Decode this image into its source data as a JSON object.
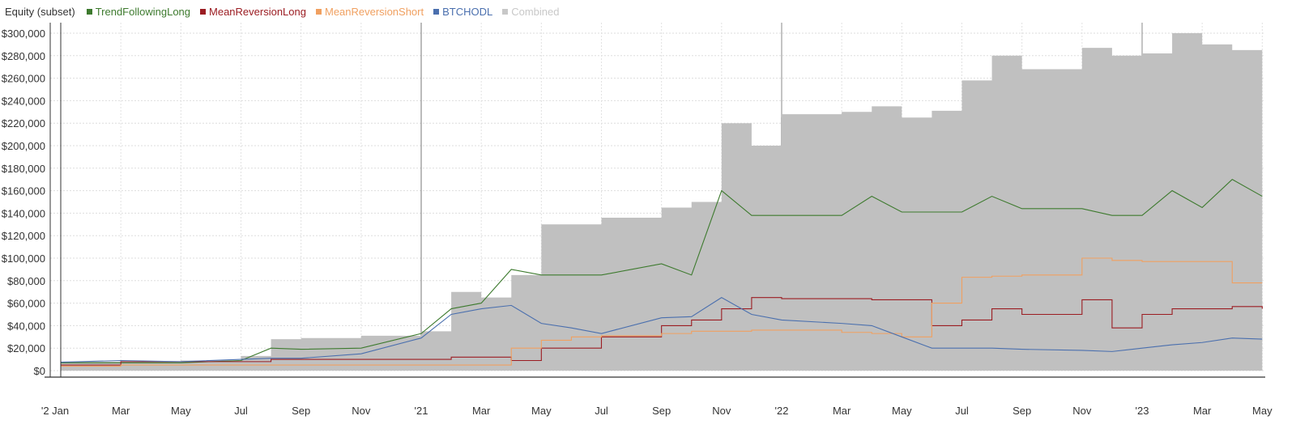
{
  "header": {
    "title": "Equity (subset)"
  },
  "legend": [
    {
      "label": "TrendFollowingLong",
      "color": "#3d7a2e"
    },
    {
      "label": "MeanReversionLong",
      "color": "#9b1c22"
    },
    {
      "label": "MeanReversionShort",
      "color": "#f0a060"
    },
    {
      "label": "BTCHODL",
      "color": "#4a6fae"
    },
    {
      "label": "Combined",
      "color": "#c0c0c0"
    }
  ],
  "chart_data": {
    "type": "line",
    "title": "Equity (subset)",
    "xlabel": "",
    "ylabel": "",
    "ylim": [
      0,
      300000
    ],
    "grid": true,
    "legend_position": "top-left",
    "y_ticks": [
      "$0",
      "$20,000",
      "$40,000",
      "$60,000",
      "$80,000",
      "$100,000",
      "$120,000",
      "$140,000",
      "$160,000",
      "$180,000",
      "$200,000",
      "$220,000",
      "$240,000",
      "$260,000",
      "$280,000",
      "$300,000"
    ],
    "x_ticks": [
      "'2 Jan",
      "Mar",
      "May",
      "Jul",
      "Sep",
      "Nov",
      "'21",
      "Mar",
      "May",
      "Jul",
      "Sep",
      "Nov",
      "'22",
      "Mar",
      "May",
      "Jul",
      "Sep",
      "Nov",
      "'23",
      "Mar",
      "May"
    ],
    "x": [
      "2020-01",
      "2020-03",
      "2020-05",
      "2020-07",
      "2020-08",
      "2020-09",
      "2020-11",
      "2021-01",
      "2021-02",
      "2021-03",
      "2021-04",
      "2021-05",
      "2021-06",
      "2021-07",
      "2021-09",
      "2021-10",
      "2021-11",
      "2021-12",
      "2022-01",
      "2022-03",
      "2022-04",
      "2022-05",
      "2022-06",
      "2022-07",
      "2022-08",
      "2022-09",
      "2022-11",
      "2022-12",
      "2023-01",
      "2023-02",
      "2023-03",
      "2023-04",
      "2023-05"
    ],
    "series": [
      {
        "name": "Combined",
        "type": "area",
        "color": "#c0c0c0",
        "values": [
          8000,
          8000,
          9000,
          13000,
          28000,
          29000,
          31000,
          35000,
          70000,
          65000,
          85000,
          130000,
          130000,
          136000,
          145000,
          150000,
          220000,
          200000,
          228000,
          230000,
          235000,
          225000,
          231000,
          258000,
          280000,
          268000,
          287000,
          280000,
          282000,
          300000,
          290000,
          285000,
          280000
        ]
      },
      {
        "name": "TrendFollowingLong",
        "color": "#3d7a2e",
        "values": [
          7000,
          7000,
          7000,
          9000,
          20000,
          19000,
          20000,
          33000,
          55000,
          60000,
          90000,
          85000,
          85000,
          85000,
          95000,
          85000,
          160000,
          138000,
          138000,
          138000,
          155000,
          141000,
          141000,
          141000,
          155000,
          144000,
          144000,
          138000,
          138000,
          160000,
          145000,
          170000,
          155000
        ]
      },
      {
        "name": "MeanReversionLong",
        "color": "#9b1c22",
        "values": [
          5000,
          8000,
          8000,
          8000,
          10000,
          10000,
          10000,
          10000,
          12000,
          12000,
          9000,
          20000,
          20000,
          30000,
          40000,
          45000,
          55000,
          65000,
          64000,
          64000,
          63000,
          63000,
          40000,
          45000,
          55000,
          50000,
          63000,
          38000,
          50000,
          55000,
          55000,
          57000,
          55000
        ]
      },
      {
        "name": "MeanReversionShort",
        "color": "#f0a060",
        "values": [
          4000,
          5000,
          5000,
          5000,
          5000,
          5000,
          5000,
          5000,
          5000,
          5000,
          20000,
          27000,
          30000,
          31000,
          33000,
          35000,
          35000,
          36000,
          36000,
          34000,
          33000,
          30000,
          60000,
          83000,
          84000,
          85000,
          100000,
          98000,
          97000,
          97000,
          97000,
          78000,
          78000
        ]
      },
      {
        "name": "BTCHODL",
        "color": "#4a6fae",
        "values": [
          7500,
          9000,
          8000,
          10000,
          11000,
          11000,
          15000,
          29000,
          50000,
          55000,
          58000,
          42000,
          38000,
          33000,
          47000,
          48000,
          65000,
          50000,
          45000,
          42000,
          40000,
          30000,
          20000,
          20000,
          20000,
          19000,
          18000,
          17000,
          20000,
          23000,
          25000,
          29000,
          28000
        ]
      }
    ]
  }
}
